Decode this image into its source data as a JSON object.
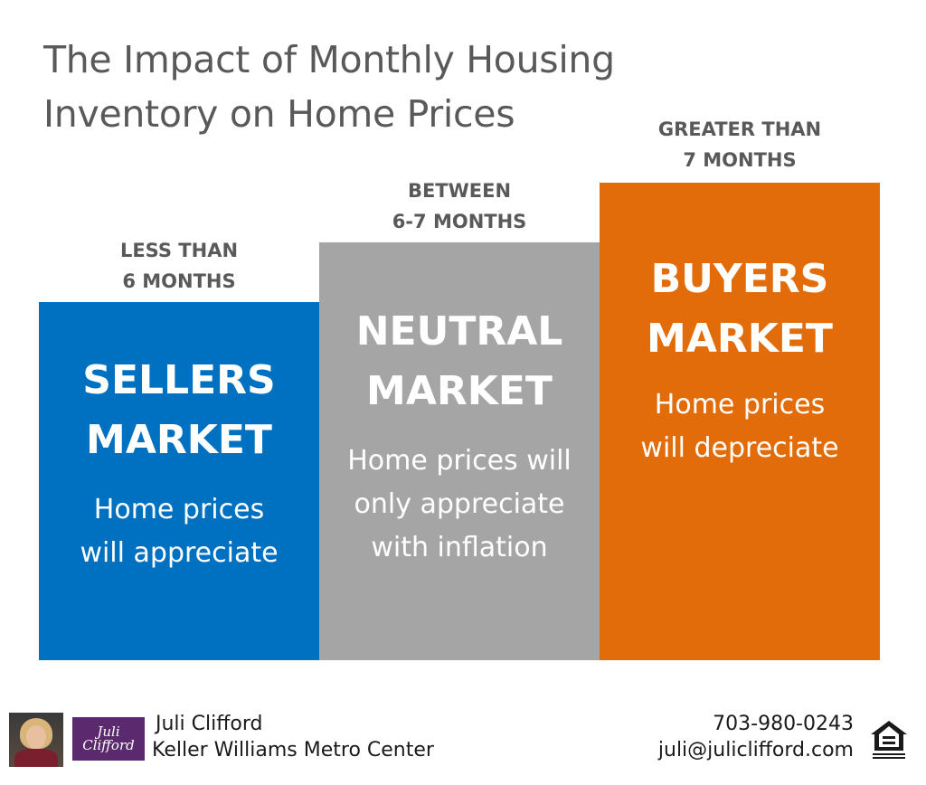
{
  "title": "The Impact of Monthly Housing\nInventory on Home Prices",
  "columns": [
    {
      "caption": "LESS THAN\n6 MONTHS",
      "heading": "SELLERS\nMARKET",
      "description": "Home prices\nwill appreciate",
      "color": "#0071c1"
    },
    {
      "caption": "BETWEEN\n6-7 MONTHS",
      "heading": "NEUTRAL\nMARKET",
      "description": "Home prices will\nonly appreciate\nwith inflation",
      "color": "#a5a5a5"
    },
    {
      "caption": "GREATER THAN\n7 MONTHS",
      "heading": "BUYERS\nMARKET",
      "description": "Home prices\nwill depreciate",
      "color": "#e36c0a"
    }
  ],
  "footer": {
    "logo_text": "Juli\nClifford",
    "agent_name": "Juli Clifford",
    "brokerage": "Keller Williams Metro Center",
    "phone": "703-980-0243",
    "email": "juli@juliclifford.com",
    "logo_icon": "equal-housing-opportunity-icon",
    "photo_icon": "agent-photo"
  }
}
